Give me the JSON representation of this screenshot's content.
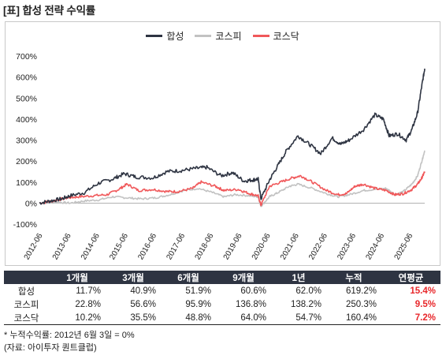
{
  "title": "[표] 합성 전략 수익률",
  "chart_data": {
    "type": "line",
    "yticks": [
      "700%",
      "600%",
      "500%",
      "400%",
      "300%",
      "200%",
      "100%",
      "0%",
      "-100%"
    ],
    "ylim": [
      -100,
      700
    ],
    "xticks": [
      "2012-06",
      "2013-06",
      "2014-06",
      "2015-06",
      "2016-06",
      "2017-06",
      "2018-06",
      "2019-06",
      "2020-06",
      "2021-06",
      "2022-06",
      "2023-06",
      "2024-06",
      "2025-06"
    ],
    "legend_position": "top-center",
    "grid": false,
    "series": [
      {
        "name": "합성",
        "color": "#2e3442",
        "x": [
          2012.42,
          2012.8,
          2013.2,
          2013.5,
          2014.0,
          2014.5,
          2015.0,
          2015.4,
          2015.8,
          2016.4,
          2016.9,
          2017.4,
          2017.9,
          2018.3,
          2018.8,
          2019.2,
          2019.6,
          2019.9,
          2020.1,
          2020.2,
          2020.5,
          2020.8,
          2021.1,
          2021.5,
          2021.9,
          2022.3,
          2022.7,
          2023.0,
          2023.3,
          2023.8,
          2024.2,
          2024.5,
          2024.7,
          2025.0,
          2025.3,
          2025.5,
          2025.7,
          2025.85,
          2025.95
        ],
        "y": [
          0,
          10,
          20,
          35,
          50,
          95,
          115,
          140,
          125,
          120,
          150,
          155,
          165,
          170,
          130,
          145,
          105,
          110,
          115,
          20,
          110,
          180,
          250,
          320,
          280,
          235,
          310,
          280,
          300,
          350,
          420,
          400,
          320,
          330,
          300,
          350,
          430,
          560,
          640
        ]
      },
      {
        "name": "코스피",
        "color": "#c2c2c2",
        "x": [
          2012.42,
          2013.0,
          2013.5,
          2014.0,
          2014.5,
          2015.0,
          2015.5,
          2016.0,
          2016.5,
          2017.0,
          2017.5,
          2018.0,
          2018.5,
          2018.9,
          2019.3,
          2019.8,
          2020.1,
          2020.2,
          2020.5,
          2020.8,
          2021.2,
          2021.5,
          2022.0,
          2022.5,
          2022.9,
          2023.3,
          2023.8,
          2024.2,
          2024.6,
          2024.9,
          2025.2,
          2025.5,
          2025.7,
          2025.85,
          2025.95
        ],
        "y": [
          0,
          5,
          0,
          10,
          15,
          30,
          25,
          20,
          25,
          40,
          60,
          70,
          50,
          30,
          40,
          35,
          30,
          -15,
          30,
          50,
          80,
          90,
          70,
          45,
          30,
          40,
          60,
          65,
          70,
          40,
          55,
          90,
          130,
          200,
          250
        ]
      },
      {
        "name": "코스닥",
        "color": "#f0585a",
        "x": [
          2012.42,
          2012.9,
          2013.4,
          2013.8,
          2014.3,
          2014.8,
          2015.2,
          2015.5,
          2015.9,
          2016.4,
          2016.9,
          2017.3,
          2017.8,
          2018.1,
          2018.6,
          2018.9,
          2019.4,
          2019.8,
          2020.1,
          2020.2,
          2020.5,
          2020.9,
          2021.3,
          2021.6,
          2022.0,
          2022.5,
          2022.9,
          2023.2,
          2023.5,
          2023.8,
          2024.2,
          2024.6,
          2024.9,
          2025.2,
          2025.5,
          2025.7,
          2025.85,
          2025.95
        ],
        "y": [
          0,
          10,
          25,
          30,
          35,
          40,
          65,
          90,
          60,
          65,
          55,
          55,
          70,
          100,
          80,
          60,
          65,
          45,
          35,
          -10,
          80,
          100,
          120,
          130,
          100,
          60,
          40,
          45,
          80,
          90,
          70,
          60,
          40,
          45,
          65,
          90,
          120,
          150
        ]
      }
    ]
  },
  "table": {
    "headers": [
      "",
      "1개월",
      "3개월",
      "6개월",
      "9개월",
      "1년",
      "누적",
      "연평균"
    ],
    "rows": [
      {
        "label": "합성",
        "values": [
          "11.7%",
          "40.9%",
          "51.9%",
          "60.6%",
          "62.0%",
          "619.2%"
        ],
        "cagr": "15.4%"
      },
      {
        "label": "코스피",
        "values": [
          "22.8%",
          "56.6%",
          "95.9%",
          "136.8%",
          "138.2%",
          "250.3%"
        ],
        "cagr": "9.5%"
      },
      {
        "label": "코스닥",
        "values": [
          "10.2%",
          "35.5%",
          "48.8%",
          "64.0%",
          "54.7%",
          "160.4%"
        ],
        "cagr": "7.2%"
      }
    ]
  },
  "notes": {
    "footnote": "* 누적수익률: 2012년 6월 3일 = 0%",
    "source": "(자료: 아이투자 퀀트클럽)"
  },
  "colors": {
    "highlight": "#e8272b",
    "header_bg": "#2e3442"
  }
}
